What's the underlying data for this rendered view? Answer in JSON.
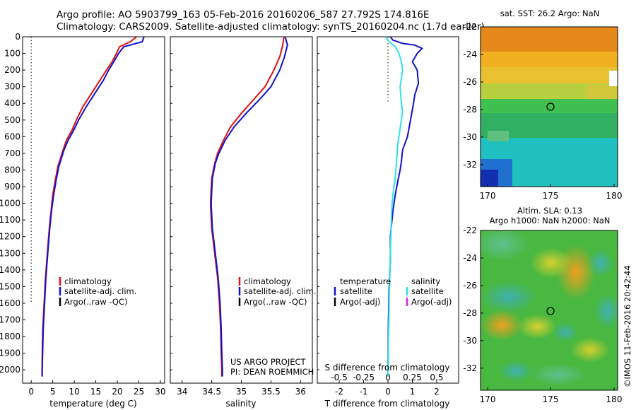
{
  "header": {
    "line1": "Argo profile: AO 5903799_163 05-Feb-2016 20160206_587 27.792S 174.816E",
    "line2": "Climatology: CARS2009. Satellite-adjusted climatology: synTS_20160204.nc (1.7d earlier)"
  },
  "colors": {
    "climatology": "#e01010",
    "satellite": "#1010cc",
    "argo": "#000000",
    "salinity_satellite": "#30e0e8",
    "salinity_argo": "#e020e0"
  },
  "chart_data": [
    {
      "type": "line",
      "panel": "temperature",
      "xlabel": "temperature (deg C)",
      "ylabel": "",
      "xlim": [
        -2,
        31
      ],
      "ylim": [
        2080,
        0
      ],
      "xticks": [
        0,
        5,
        10,
        15,
        20,
        25,
        30
      ],
      "yticks": [
        0,
        100,
        200,
        300,
        400,
        500,
        600,
        700,
        800,
        900,
        1000,
        1100,
        1200,
        1300,
        1400,
        1500,
        1600,
        1700,
        1800,
        1900,
        2000
      ],
      "zero_line": {
        "x": 0,
        "ymax": 1600
      },
      "legend": [
        "climatology",
        "satellite-adj. clim.",
        "Argo(..raw -QC)"
      ],
      "series": [
        {
          "name": "climatology",
          "color_key": "climatology",
          "x": [
            24.5,
            23,
            20.5,
            19.8,
            18.8,
            17.5,
            16,
            14,
            12,
            10.5,
            9.5,
            8.2,
            7.4,
            6.2,
            5.6,
            5,
            4.6,
            4.2,
            3.9,
            3.6,
            3.3,
            3.1,
            2.9,
            2.7,
            2.6,
            2.55,
            2.5
          ],
          "y": [
            0,
            30,
            60,
            100,
            150,
            200,
            260,
            340,
            420,
            500,
            560,
            620,
            680,
            780,
            860,
            950,
            1050,
            1150,
            1250,
            1350,
            1450,
            1550,
            1650,
            1750,
            1850,
            1950,
            2040
          ]
        },
        {
          "name": "satellite-adj. clim.",
          "color_key": "satellite",
          "x": [
            26.2,
            25.8,
            21.5,
            20.3,
            19.2,
            18,
            16.8,
            14.8,
            12.8,
            11,
            9.9,
            8.6,
            7.6,
            6.4,
            5.8,
            5.2,
            4.7,
            4.3,
            4,
            3.7,
            3.4,
            3.2,
            3,
            2.8,
            2.7,
            2.6,
            2.55
          ],
          "y": [
            0,
            30,
            60,
            100,
            150,
            200,
            260,
            340,
            420,
            500,
            560,
            620,
            680,
            780,
            860,
            950,
            1050,
            1150,
            1250,
            1350,
            1450,
            1550,
            1650,
            1750,
            1850,
            1950,
            2040
          ]
        }
      ]
    },
    {
      "type": "line",
      "panel": "salinity",
      "xlabel": "salinity",
      "ylabel": "",
      "xlim": [
        33.8,
        36.2
      ],
      "ylim": [
        2080,
        0
      ],
      "xticks": [
        34,
        34.5,
        35,
        35.5,
        36
      ],
      "legend": [
        "climatology",
        "satellite-adj. clim.",
        "Argo(..raw -QC)"
      ],
      "series": [
        {
          "name": "climatology",
          "color_key": "climatology",
          "x": [
            35.72,
            35.7,
            35.65,
            35.55,
            35.4,
            35.2,
            35.0,
            34.82,
            34.7,
            34.6,
            34.55,
            34.5,
            34.48,
            34.5,
            34.55,
            34.6,
            34.63,
            34.65,
            34.66,
            34.67,
            34.67
          ],
          "y": [
            0,
            50,
            120,
            200,
            300,
            380,
            460,
            540,
            620,
            700,
            760,
            850,
            1000,
            1150,
            1300,
            1450,
            1600,
            1750,
            1900,
            2000,
            2040
          ]
        },
        {
          "name": "satellite-adj. clim.",
          "color_key": "satellite",
          "x": [
            35.74,
            35.78,
            35.73,
            35.65,
            35.5,
            35.3,
            35.08,
            34.88,
            34.73,
            34.62,
            34.56,
            34.51,
            34.49,
            34.51,
            34.56,
            34.61,
            34.64,
            34.66,
            34.67,
            34.68,
            34.68
          ],
          "y": [
            0,
            50,
            120,
            200,
            300,
            380,
            460,
            540,
            620,
            700,
            760,
            850,
            1000,
            1150,
            1300,
            1450,
            1600,
            1750,
            1900,
            2000,
            2040
          ]
        }
      ],
      "annotation": [
        "US ARGO PROJECT",
        "PI: DEAN ROEMMICH"
      ]
    },
    {
      "type": "line",
      "panel": "difference",
      "xlabel": "T difference from climatology",
      "top_label": "S difference from climatology",
      "xlim": [
        -2.9,
        2.9
      ],
      "ylim": [
        2080,
        0
      ],
      "xticks": [
        -2,
        -1,
        0,
        1,
        2
      ],
      "top_ticks": [
        "-0.5",
        "-0.25",
        "0",
        "0.25",
        "0.5"
      ],
      "top_tick_positions": [
        -2,
        -1,
        0,
        1,
        2
      ],
      "legend_left": [
        "temperature",
        "satellite",
        "Argo(-adj)"
      ],
      "legend_right": [
        "salinity",
        "satellite",
        "Argo(-adj)"
      ],
      "series": [
        {
          "name": "temperature satellite",
          "color_key": "satellite",
          "x": [
            0.1,
            0.2,
            0.6,
            1.1,
            1.4,
            1.2,
            1.0,
            1.2,
            1.25,
            1.1,
            1.05,
            0.95,
            0.8,
            0.6,
            0.55,
            0.5,
            0.4,
            0.3,
            0.2,
            0.1,
            0.1,
            0.05,
            0.02,
            0.0
          ],
          "y": [
            0,
            20,
            40,
            50,
            70,
            100,
            150,
            200,
            280,
            350,
            400,
            480,
            600,
            680,
            750,
            800,
            870,
            950,
            1050,
            1200,
            1350,
            1500,
            1700,
            2040
          ]
        },
        {
          "name": "salinity satellite",
          "color_key": "salinity_satellite",
          "x": [
            -0.1,
            0.05,
            0.3,
            0.45,
            0.55,
            0.6,
            0.5,
            0.55,
            0.6,
            0.5,
            0.4,
            0.35,
            0.3,
            0.2,
            0.15,
            0.1,
            0.05,
            0.0
          ],
          "y": [
            0,
            30,
            60,
            100,
            150,
            200,
            300,
            400,
            450,
            550,
            650,
            750,
            850,
            950,
            1050,
            1300,
            1600,
            2040
          ]
        }
      ]
    }
  ],
  "maps": {
    "sst": {
      "title": "sat. SST: 26.2  Argo: NaN",
      "yticks": [
        "-22",
        "-24",
        "-26",
        "-28",
        "-30",
        "-32"
      ],
      "xticks": [
        "170",
        "175",
        "180"
      ]
    },
    "sla": {
      "title1": "Altim. SLA: 0.13",
      "title2": "Argo h1000: NaN h2000: NaN",
      "yticks": [
        "-22",
        "-24",
        "-26",
        "-28",
        "-30",
        "-32"
      ],
      "xticks": [
        "170",
        "175",
        "180"
      ]
    }
  },
  "credit": "©IMOS 11-Feb-2016 20:42:44"
}
